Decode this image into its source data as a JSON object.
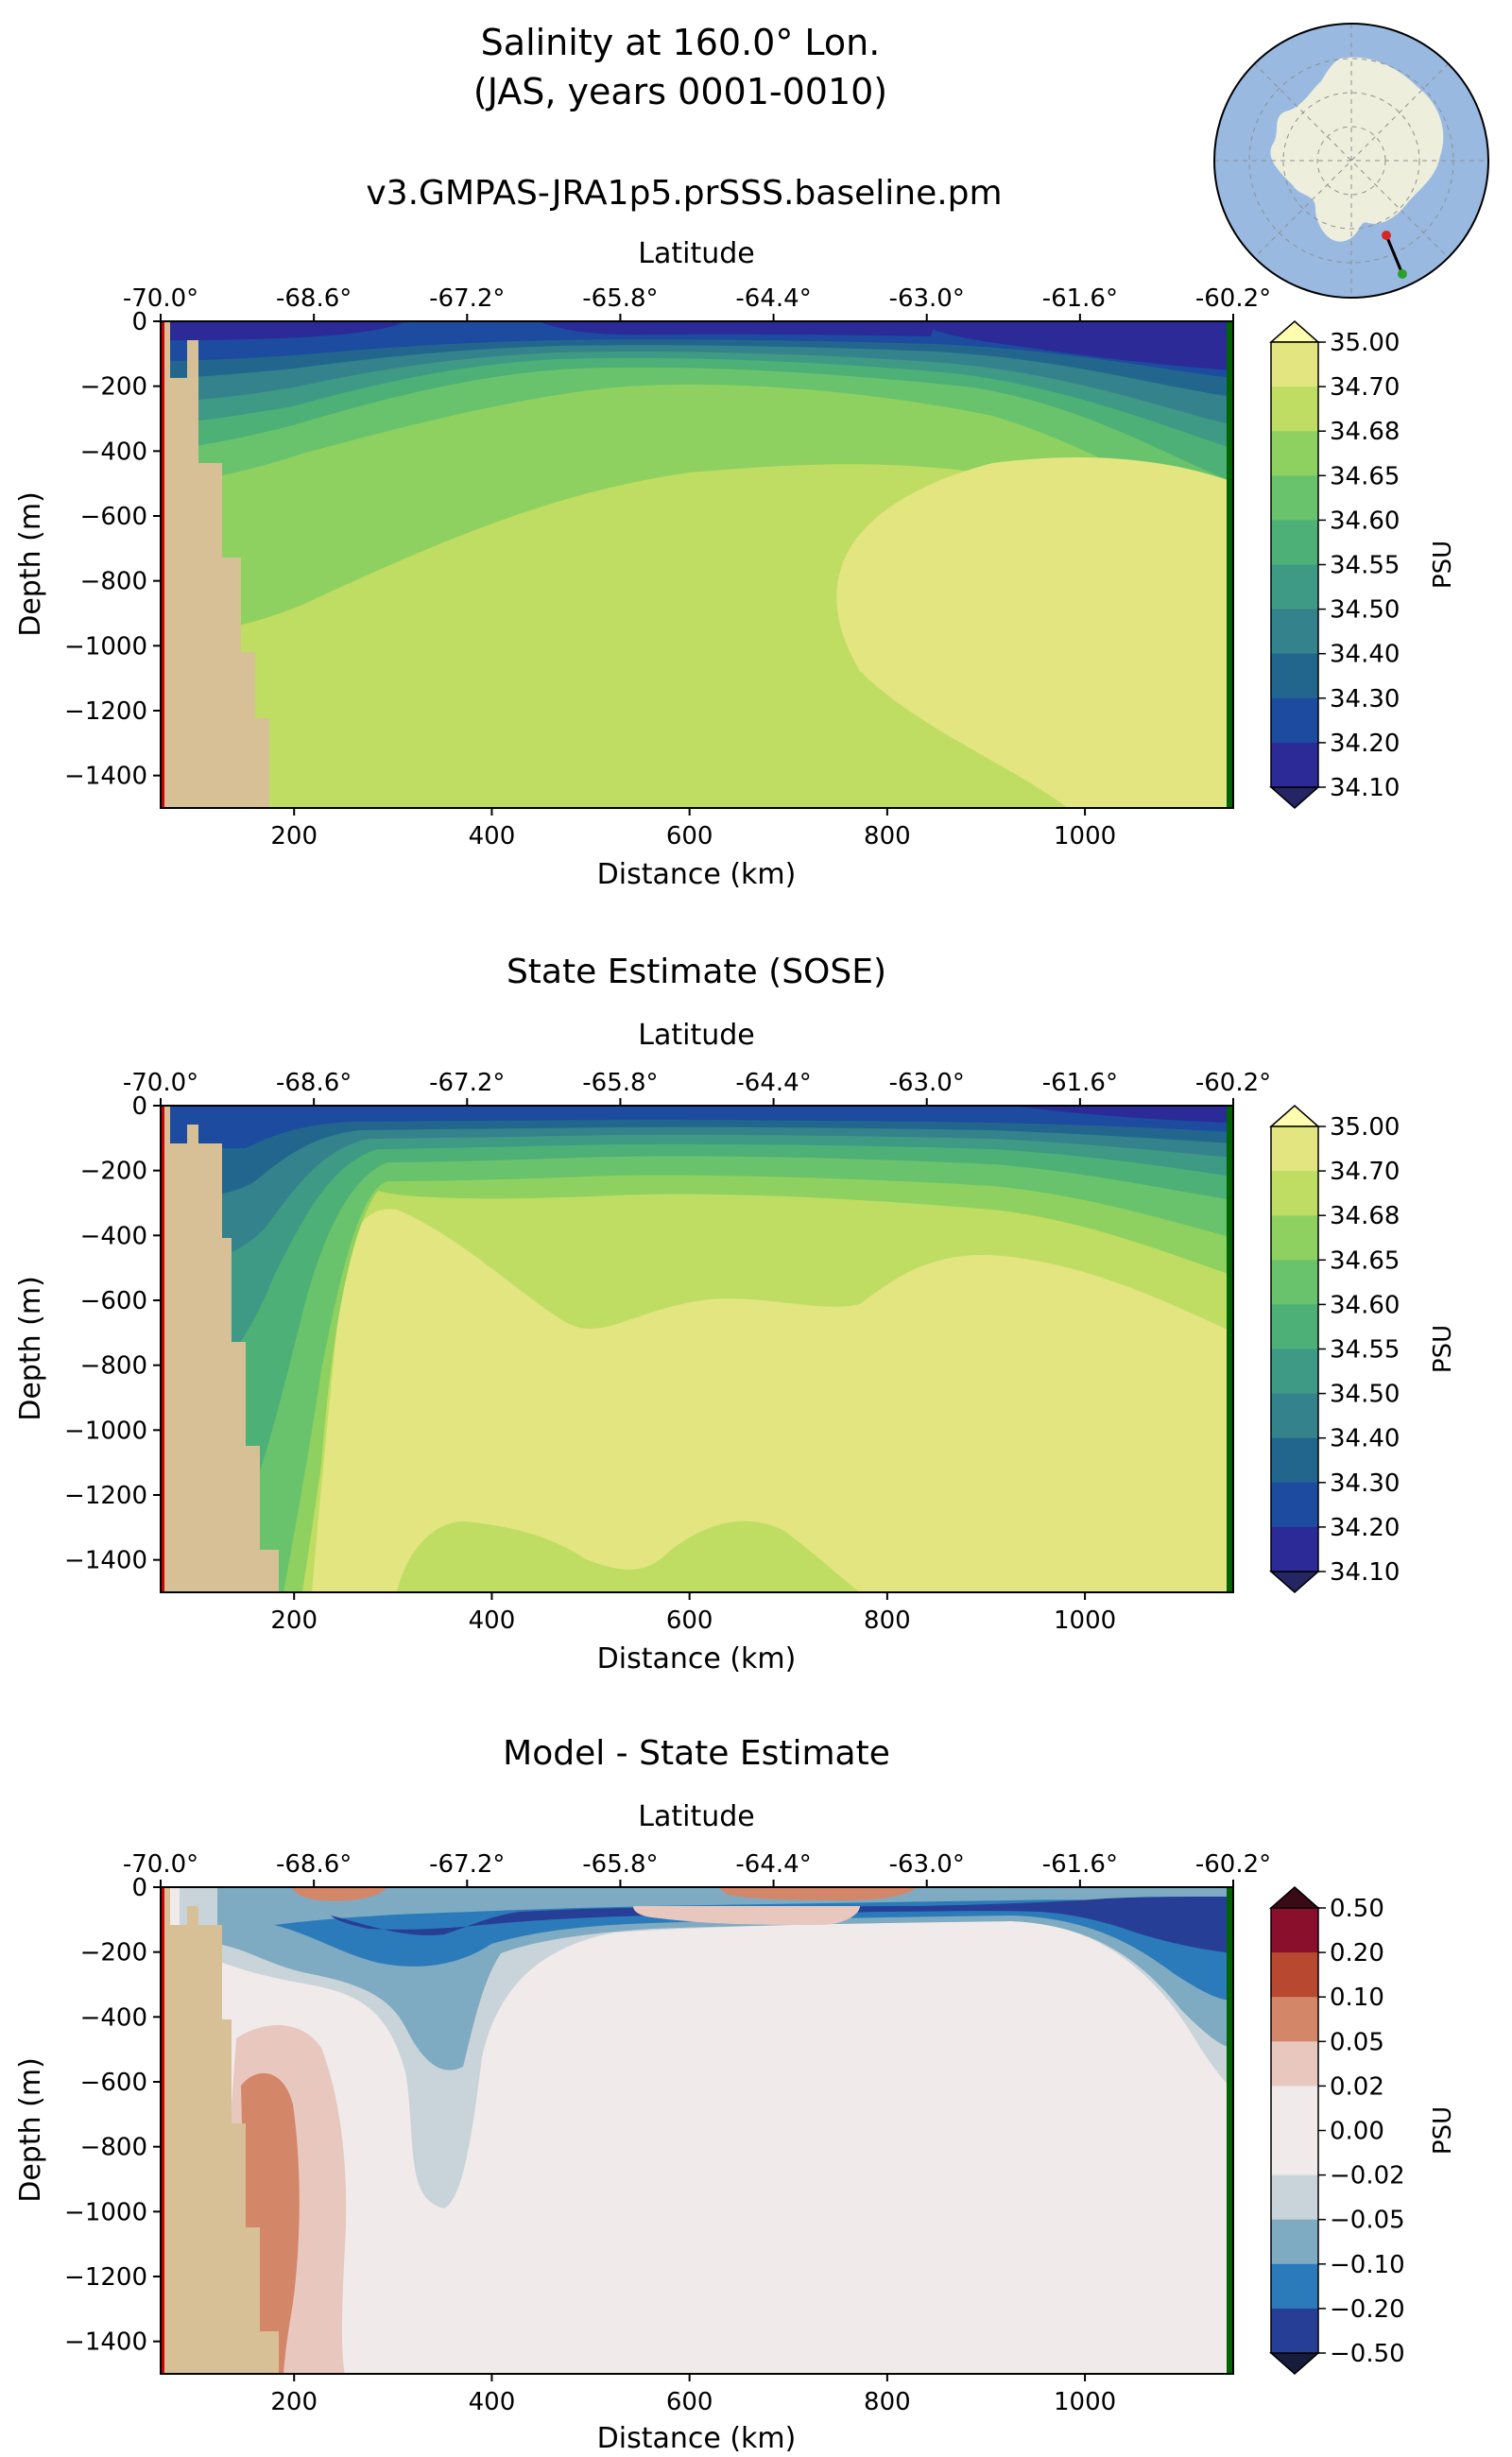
{
  "figure": {
    "title_line1": "Salinity at 160.0° Lon.",
    "title_line2": "(JAS, years 0001-0010)"
  },
  "inset_map": {
    "description": "south polar stereographic",
    "ocean_color": "#99b9e1",
    "land_color": "#eeeedd",
    "transect_start_color": "#d62728",
    "transect_end_color": "#2ca02c"
  },
  "colors": {
    "bathymetry": "#d8c096",
    "start_marker": "#cc0000",
    "end_marker": "#006400"
  },
  "panels": [
    {
      "title": "v3.GMPAS-JRA1p5.prSSS.baseline.pm",
      "kind": "model",
      "colorbar_unit": "PSU",
      "colorbar_ticks": [
        "35.00",
        "34.70",
        "34.68",
        "34.65",
        "34.60",
        "34.55",
        "34.50",
        "34.40",
        "34.30",
        "34.20",
        "34.10"
      ],
      "colorbar_colors": [
        "#e3e580",
        "#bfdd63",
        "#8fd160",
        "#69c36c",
        "#4cb077",
        "#3e9985",
        "#34828b",
        "#22668e",
        "#1c4ba0",
        "#2b2a96"
      ],
      "extend_min_color": "#262563",
      "extend_max_color": "#fdfdb0"
    },
    {
      "title": "State Estimate (SOSE)",
      "kind": "sose",
      "colorbar_unit": "PSU",
      "colorbar_ticks": [
        "35.00",
        "34.70",
        "34.68",
        "34.65",
        "34.60",
        "34.55",
        "34.50",
        "34.40",
        "34.30",
        "34.20",
        "34.10"
      ],
      "colorbar_colors": [
        "#e3e580",
        "#bfdd63",
        "#8fd160",
        "#69c36c",
        "#4cb077",
        "#3e9985",
        "#34828b",
        "#22668e",
        "#1c4ba0",
        "#2b2a96"
      ],
      "extend_min_color": "#262563",
      "extend_max_color": "#fdfdb0"
    },
    {
      "title": "Model - State Estimate",
      "kind": "diff",
      "colorbar_unit": "PSU",
      "colorbar_ticks": [
        "0.50",
        "0.20",
        "0.10",
        "0.05",
        "0.02",
        "0.00",
        "−0.02",
        "−0.05",
        "−0.10",
        "−0.20",
        "−0.50"
      ],
      "colorbar_colors": [
        "#8a0f2d",
        "#b8482f",
        "#d48668",
        "#e8c8be",
        "#f0ebea",
        "#f0ebea",
        "#c9d4da",
        "#7eabc2",
        "#2b7bba",
        "#273e97"
      ],
      "extend_min_color": "#171c3a",
      "extend_max_color": "#3a0a17"
    }
  ],
  "chart_data": {
    "type": "heatmap",
    "xlabel": "Distance (km)",
    "ylabel": "Depth (m)",
    "top_xlabel": "Latitude",
    "xlim": [
      65,
      1150
    ],
    "ylim": [
      -1500,
      0
    ],
    "x_ticks": [
      200,
      400,
      600,
      800,
      1000
    ],
    "y_ticks": [
      0,
      -200,
      -400,
      -600,
      -800,
      -1000,
      -1200,
      -1400
    ],
    "top_ticks": [
      {
        "km": 65,
        "label": "-70.0°"
      },
      {
        "km": 220,
        "label": "-68.6°"
      },
      {
        "km": 375,
        "label": "-67.2°"
      },
      {
        "km": 530,
        "label": "-65.8°"
      },
      {
        "km": 685,
        "label": "-64.4°"
      },
      {
        "km": 840,
        "label": "-63.0°"
      },
      {
        "km": 995,
        "label": "-61.6°"
      },
      {
        "km": 1150,
        "label": "-60.2°"
      }
    ],
    "grid": false
  }
}
